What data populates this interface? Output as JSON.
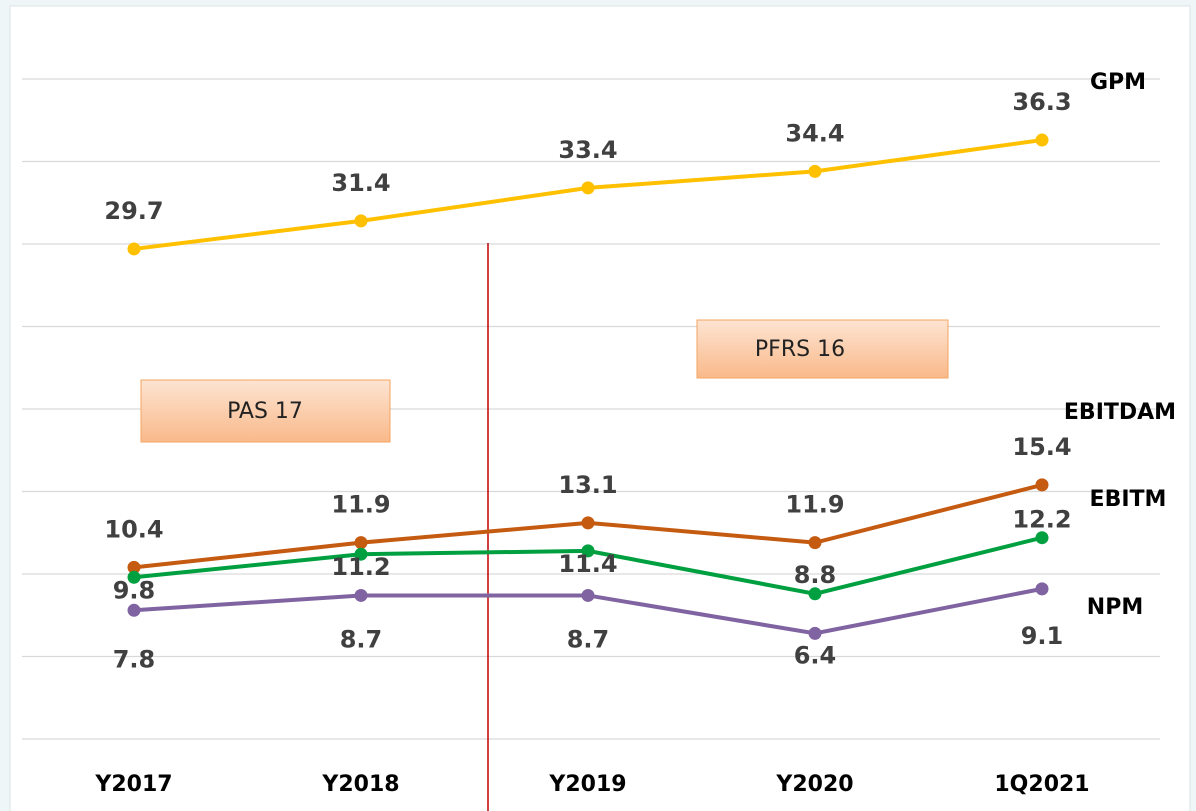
{
  "chart_data": {
    "type": "line",
    "categories": [
      "Y2017",
      "Y2018",
      "Y2019",
      "Y2020",
      "1Q2021"
    ],
    "series": [
      {
        "name": "GPM",
        "color": "#ffc000",
        "values": [
          29.7,
          31.4,
          33.4,
          34.4,
          36.3
        ]
      },
      {
        "name": "EBITDAM",
        "color": "#c55a11",
        "values": [
          10.4,
          11.9,
          13.1,
          11.9,
          15.4
        ]
      },
      {
        "name": "EBITM",
        "color": "#00a040",
        "values": [
          9.8,
          11.2,
          11.4,
          8.8,
          12.2
        ]
      },
      {
        "name": "NPM",
        "color": "#8064a2",
        "values": [
          7.8,
          8.7,
          8.7,
          6.4,
          9.1
        ]
      }
    ],
    "annotations": [
      "PAS 17",
      "PFRS 16"
    ],
    "ylim": [
      0,
      40
    ],
    "yticks": [
      0,
      5,
      10,
      15,
      20,
      25,
      30,
      35,
      40
    ],
    "grid": true
  }
}
